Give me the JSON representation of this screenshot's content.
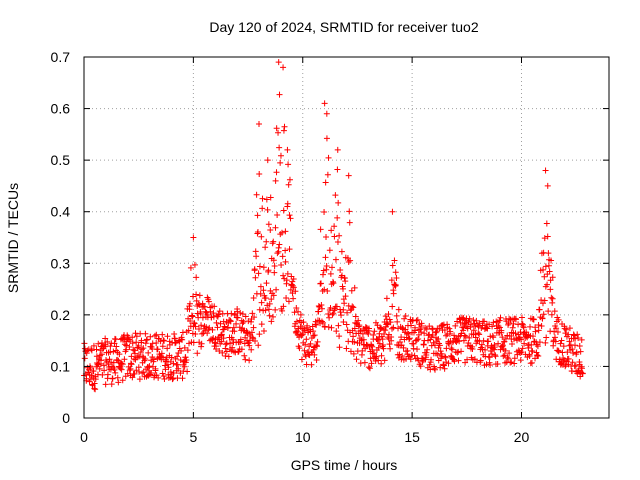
{
  "chart_data": {
    "type": "scatter",
    "title": "Day 120 of 2024, SRMTID for receiver tuo2",
    "xlabel": "GPS time / hours",
    "ylabel": "SRMTID / TECUs",
    "xlim": [
      0,
      24
    ],
    "ylim": [
      0,
      0.7
    ],
    "xticks": [
      0,
      5,
      10,
      15,
      20
    ],
    "yticks": [
      0,
      0.1,
      0.2,
      0.3,
      0.4,
      0.5,
      0.6,
      0.7
    ],
    "xtick_labels": [
      "0",
      "5",
      "10",
      "15",
      "20"
    ],
    "ytick_labels": [
      "0",
      "0.1",
      "0.2",
      "0.3",
      "0.4",
      "0.5",
      "0.6",
      "0.7"
    ],
    "grid": true,
    "marker": "+",
    "marker_color": "#ff0000",
    "series": [
      {
        "name": "SRMTID",
        "approx_trend": {
          "x": [
            0,
            0.5,
            1,
            1.5,
            2,
            2.5,
            3,
            3.5,
            4,
            4.5,
            5,
            5.5,
            6,
            6.5,
            7,
            7.5,
            8,
            8.5,
            9,
            9.5,
            10,
            10.5,
            11,
            11.5,
            12,
            12.5,
            13,
            13.5,
            14,
            14.5,
            15,
            15.5,
            16,
            16.5,
            17,
            17.5,
            18,
            18.5,
            19,
            19.5,
            20,
            20.5,
            21,
            21.5,
            22,
            22.5,
            22.8
          ],
          "y": [
            0.1,
            0.1,
            0.11,
            0.11,
            0.12,
            0.12,
            0.12,
            0.12,
            0.12,
            0.12,
            0.14,
            0.2,
            0.18,
            0.16,
            0.17,
            0.15,
            0.17,
            0.22,
            0.25,
            0.24,
            0.15,
            0.14,
            0.2,
            0.18,
            0.16,
            0.15,
            0.14,
            0.14,
            0.15,
            0.15,
            0.16,
            0.14,
            0.13,
            0.14,
            0.15,
            0.15,
            0.15,
            0.14,
            0.15,
            0.15,
            0.15,
            0.15,
            0.17,
            0.16,
            0.14,
            0.12,
            0.12
          ]
        },
        "peaks": [
          {
            "x": 5.0,
            "y": 0.35
          },
          {
            "x": 8.0,
            "y": 0.57
          },
          {
            "x": 8.4,
            "y": 0.5
          },
          {
            "x": 8.9,
            "y": 0.69
          },
          {
            "x": 9.1,
            "y": 0.68
          },
          {
            "x": 9.3,
            "y": 0.52
          },
          {
            "x": 11.0,
            "y": 0.61
          },
          {
            "x": 11.1,
            "y": 0.59
          },
          {
            "x": 11.6,
            "y": 0.52
          },
          {
            "x": 12.1,
            "y": 0.47
          },
          {
            "x": 14.1,
            "y": 0.4
          },
          {
            "x": 21.1,
            "y": 0.48
          },
          {
            "x": 21.2,
            "y": 0.45
          }
        ],
        "point_count": 1400,
        "x_range": [
          0,
          22.8
        ]
      }
    ]
  }
}
